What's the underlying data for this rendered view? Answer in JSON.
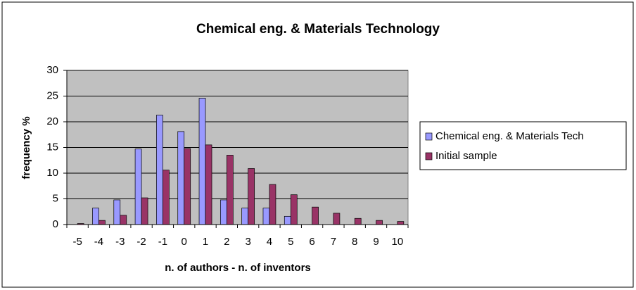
{
  "chart_data": {
    "type": "bar",
    "title": "Chemical eng. & Materials Technology",
    "x_label": "n. of authors - n. of inventors",
    "y_label": "frequency %",
    "categories": [
      -5,
      -4,
      -3,
      -2,
      -1,
      0,
      1,
      2,
      3,
      4,
      5,
      6,
      7,
      8,
      9,
      10
    ],
    "series": [
      {
        "name": "Chemical eng. & Materials Tech",
        "color": "#9999ff",
        "values": [
          0,
          3.2,
          4.8,
          14.7,
          21.3,
          18.1,
          24.6,
          4.8,
          3.2,
          3.2,
          1.6,
          0,
          0,
          0,
          0,
          0
        ]
      },
      {
        "name": "Initial sample",
        "color": "#993366",
        "values": [
          0.2,
          0.8,
          1.8,
          5.2,
          10.6,
          14.8,
          15.5,
          13.5,
          10.9,
          7.8,
          5.8,
          3.4,
          2.2,
          1.2,
          0.8,
          0.6
        ]
      }
    ],
    "ylim": [
      0,
      30
    ],
    "yticks": [
      0,
      5,
      10,
      15,
      20,
      25,
      30
    ],
    "grid": true,
    "plot_background": "#c0c0c0",
    "legend": "right"
  }
}
